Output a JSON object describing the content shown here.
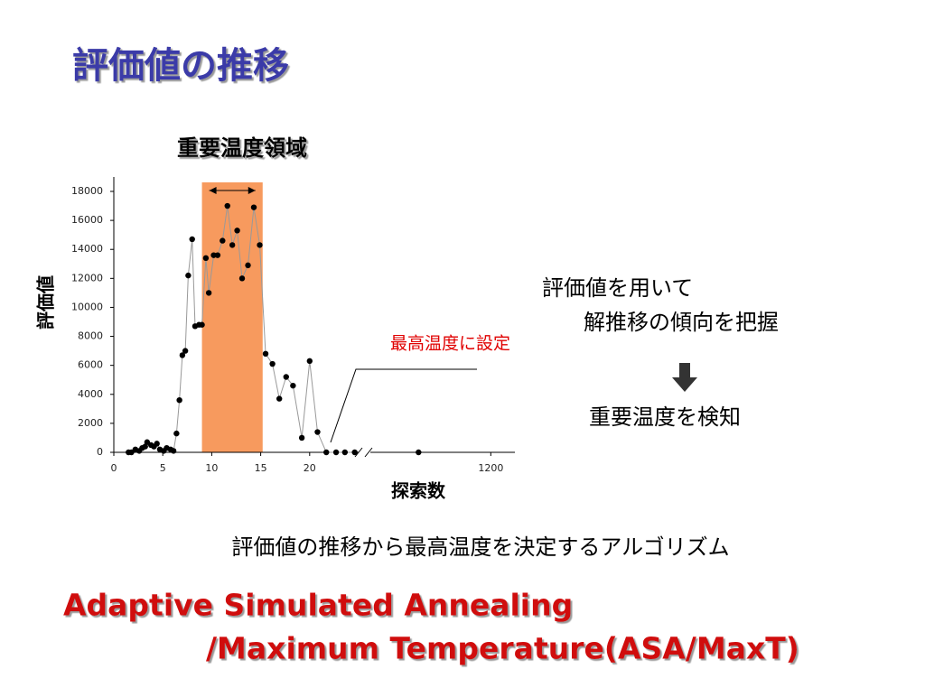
{
  "slide": {
    "title": "評価値の推移",
    "notes": [
      "評価値を用いて",
      "解推移の傾向を把握",
      "重要温度を検知"
    ],
    "caption": "評価値の推移から最高温度を決定するアルゴリズム",
    "method": [
      "Adaptive Simulated Annealing",
      "/Maximum Temperature(ASA/MaxT)"
    ]
  },
  "chart_data": {
    "type": "scatter",
    "title": "重要温度領域",
    "x_label": "探索数",
    "y_label": "評価値",
    "annotation": "最高温度に設定",
    "highlight": [
      9,
      15.2
    ],
    "highlight_color": "#f79a5e",
    "x_break": [
      25,
      1100
    ],
    "xlim": [
      0,
      1220
    ],
    "xticks": [
      0,
      5,
      10,
      15,
      20,
      1200
    ],
    "ylim": [
      0,
      18000
    ],
    "yticks": [
      0,
      2000,
      4000,
      6000,
      8000,
      10000,
      12000,
      14000,
      16000,
      18000
    ],
    "series": [
      {
        "color": "#000000",
        "x": [
          1.5,
          1.8,
          2.2,
          2.6,
          2.9,
          3.2,
          3.4,
          3.8,
          4.1,
          4.4,
          4.7,
          5.1,
          5.4,
          5.8,
          6.1,
          6.4,
          6.7,
          7.0,
          7.3,
          7.6,
          8.0,
          8.3,
          8.7,
          9.0,
          9.4,
          9.7,
          10.2,
          10.6,
          11.1,
          11.6,
          12.1,
          12.6,
          13.1,
          13.7,
          14.3,
          14.9,
          15.5,
          16.2,
          16.9,
          17.6,
          18.3,
          19.2,
          20.0,
          20.8,
          21.7,
          22.7,
          23.6,
          24.6,
          1140
        ],
        "values": [
          0,
          0,
          200,
          100,
          300,
          400,
          700,
          500,
          400,
          600,
          200,
          100,
          300,
          200,
          100,
          1300,
          3600,
          6700,
          7000,
          12200,
          14700,
          8700,
          8800,
          8800,
          13400,
          11000,
          13600,
          13600,
          14600,
          17000,
          14300,
          15300,
          12000,
          12900,
          16900,
          14300,
          6800,
          6100,
          3700,
          5200,
          4600,
          1000,
          6300,
          1400,
          0,
          0,
          0,
          0,
          0
        ]
      }
    ]
  }
}
